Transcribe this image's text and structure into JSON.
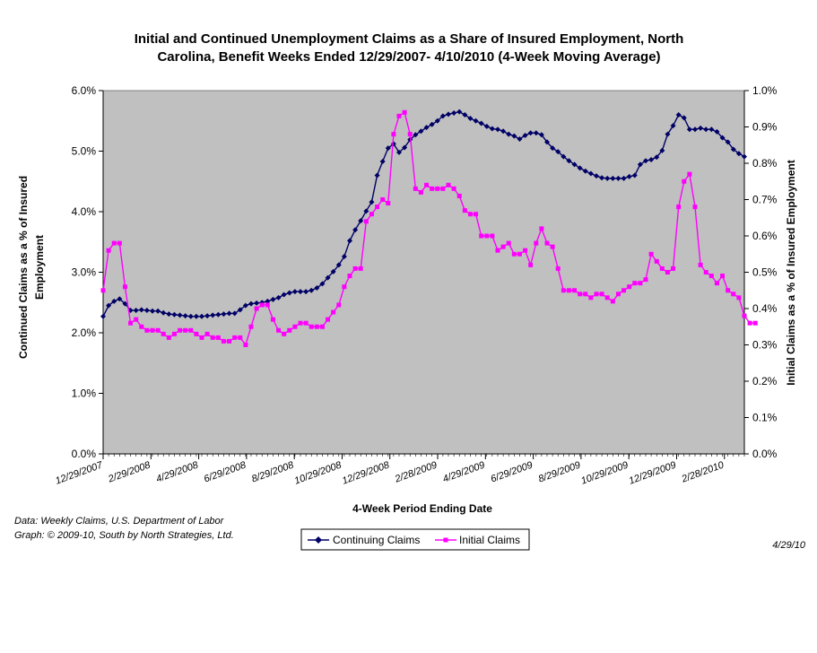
{
  "chart_data": {
    "type": "line",
    "title_lines": [
      "Initial and Continued Unemployment Claims as a Share of Insured Employment, North",
      "Carolina, Benefit Weeks Ended 12/29/2007- 4/10/2010 (4-Week Moving Average)"
    ],
    "xlabel": "4-Week Period Ending Date",
    "ylabel_left_lines": [
      "Continued Claims as a % of Insured",
      "Employment"
    ],
    "ylabel_right": "Initial Claims as a % of Insured Employment",
    "y_left_ticks": [
      "0.0%",
      "1.0%",
      "2.0%",
      "3.0%",
      "4.0%",
      "5.0%",
      "6.0%"
    ],
    "y_right_ticks": [
      "0.0%",
      "0.1%",
      "0.2%",
      "0.3%",
      "0.4%",
      "0.5%",
      "0.6%",
      "0.7%",
      "0.8%",
      "0.9%",
      "1.0%"
    ],
    "x_tick_labels": [
      "12/29/2007",
      "2/29/2008",
      "4/29/2008",
      "6/29/2008",
      "8/29/2008",
      "10/29/2008",
      "12/29/2008",
      "2/28/2009",
      "4/29/2009",
      "6/29/2009",
      "8/29/2009",
      "10/29/2009",
      "12/29/2009",
      "2/28/2010"
    ],
    "ylim_left": [
      0,
      6
    ],
    "ylim_right": [
      0,
      1
    ],
    "grid": false,
    "legend_position": "bottom-center",
    "plot_background": "#c0c0c0",
    "series": [
      {
        "name": "Continuing Claims",
        "axis": "left",
        "color": "#000066",
        "marker": "diamond",
        "values": [
          2.27,
          2.45,
          2.52,
          2.56,
          2.48,
          2.37,
          2.37,
          2.38,
          2.37,
          2.36,
          2.36,
          2.33,
          2.31,
          2.3,
          2.29,
          2.28,
          2.27,
          2.27,
          2.27,
          2.28,
          2.29,
          2.3,
          2.31,
          2.32,
          2.32,
          2.38,
          2.45,
          2.48,
          2.49,
          2.5,
          2.52,
          2.55,
          2.58,
          2.63,
          2.66,
          2.68,
          2.68,
          2.68,
          2.7,
          2.74,
          2.81,
          2.91,
          3.01,
          3.12,
          3.26,
          3.52,
          3.7,
          3.85,
          4.01,
          4.16,
          4.6,
          4.83,
          5.05,
          5.12,
          4.98,
          5.06,
          5.19,
          5.27,
          5.33,
          5.39,
          5.44,
          5.5,
          5.58,
          5.61,
          5.63,
          5.65,
          5.6,
          5.54,
          5.5,
          5.46,
          5.41,
          5.37,
          5.36,
          5.33,
          5.28,
          5.25,
          5.2,
          5.26,
          5.3,
          5.3,
          5.27,
          5.15,
          5.05,
          4.99,
          4.91,
          4.84,
          4.78,
          4.72,
          4.67,
          4.63,
          4.59,
          4.56,
          4.55,
          4.55,
          4.55,
          4.55,
          4.58,
          4.6,
          4.78,
          4.84,
          4.86,
          4.9,
          5.01,
          5.28,
          5.42,
          5.6,
          5.55,
          5.36,
          5.36,
          5.38,
          5.36,
          5.36,
          5.32,
          5.22,
          5.15,
          5.03,
          4.96,
          4.91
        ]
      },
      {
        "name": "Initial Claims",
        "axis": "right",
        "color": "#ff00ff",
        "marker": "square",
        "values": [
          0.45,
          0.56,
          0.58,
          0.58,
          0.46,
          0.36,
          0.37,
          0.35,
          0.34,
          0.34,
          0.34,
          0.33,
          0.32,
          0.33,
          0.34,
          0.34,
          0.34,
          0.33,
          0.32,
          0.33,
          0.32,
          0.32,
          0.31,
          0.31,
          0.32,
          0.32,
          0.3,
          0.35,
          0.4,
          0.41,
          0.41,
          0.37,
          0.34,
          0.33,
          0.34,
          0.35,
          0.36,
          0.36,
          0.35,
          0.35,
          0.35,
          0.37,
          0.39,
          0.41,
          0.46,
          0.49,
          0.51,
          0.51,
          0.64,
          0.66,
          0.68,
          0.7,
          0.69,
          0.88,
          0.93,
          0.94,
          0.88,
          0.73,
          0.72,
          0.74,
          0.73,
          0.73,
          0.73,
          0.74,
          0.73,
          0.71,
          0.67,
          0.66,
          0.66,
          0.6,
          0.6,
          0.6,
          0.56,
          0.57,
          0.58,
          0.55,
          0.55,
          0.56,
          0.52,
          0.58,
          0.62,
          0.58,
          0.57,
          0.51,
          0.45,
          0.45,
          0.45,
          0.44,
          0.44,
          0.43,
          0.44,
          0.44,
          0.43,
          0.42,
          0.44,
          0.45,
          0.46,
          0.47,
          0.47,
          0.48,
          0.55,
          0.53,
          0.51,
          0.5,
          0.51,
          0.68,
          0.75,
          0.77,
          0.68,
          0.52,
          0.5,
          0.49,
          0.47,
          0.49,
          0.45,
          0.44,
          0.43,
          0.38,
          0.36,
          0.36
        ]
      }
    ]
  },
  "notes": {
    "source": "Data:  Weekly Claims, U.S. Department of Labor",
    "credit": "Graph: © 2009-10, South by North Strategies, Ltd.",
    "date": "4/29/10"
  }
}
